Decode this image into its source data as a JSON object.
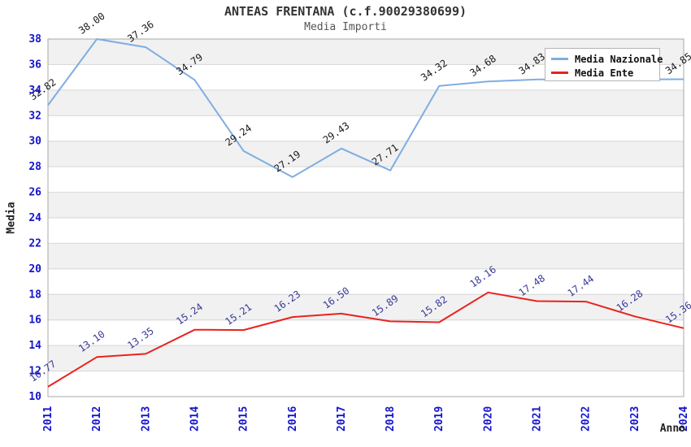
{
  "header": {
    "title": "ANTEAS FRENTANA (c.f.90029380699)",
    "subtitle": "Media Importi"
  },
  "chart_data": {
    "type": "line",
    "title": "ANTEAS FRENTANA (c.f.90029380699)",
    "subtitle": "Media Importi",
    "xlabel": "Anno",
    "ylabel": "Media",
    "x": [
      "2011",
      "2012",
      "2013",
      "2014",
      "2015",
      "2016",
      "2017",
      "2018",
      "2019",
      "2020",
      "2021",
      "2022",
      "2023",
      "2024"
    ],
    "ylim": [
      10,
      38
    ],
    "ytick_step": 2,
    "grid": "horizontal-bands",
    "legend_position": "top-right",
    "series": [
      {
        "name": "Media Nazionale",
        "color": "#7fade2",
        "label_color": "#1a1a1a",
        "values": [
          32.82,
          38.0,
          37.36,
          34.79,
          29.24,
          27.19,
          29.43,
          27.71,
          34.32,
          34.68,
          34.83,
          34.84,
          34.84,
          34.85
        ],
        "labels": [
          "32.82",
          "38.00",
          "37.36",
          "34.79",
          "29.24",
          "27.19",
          "29.43",
          "27.71",
          "34.32",
          "34.68",
          "34.83",
          "",
          "",
          "34.85"
        ]
      },
      {
        "name": "Media Ente",
        "color": "#e8231f",
        "label_color": "#3a3a99",
        "values": [
          10.77,
          13.1,
          13.35,
          15.24,
          15.21,
          16.23,
          16.5,
          15.89,
          15.82,
          18.16,
          17.48,
          17.44,
          16.28,
          15.36
        ],
        "labels": [
          "10.77",
          "13.10",
          "13.35",
          "15.24",
          "15.21",
          "16.23",
          "16.50",
          "15.89",
          "15.82",
          "18.16",
          "17.48",
          "17.44",
          "16.28",
          "15.36"
        ]
      }
    ]
  },
  "style": {
    "tick_color": "#1414cc",
    "band_fill": "#f1f1f1",
    "grid_color": "#d6d6d6",
    "border_color": "#a8a8a8"
  }
}
